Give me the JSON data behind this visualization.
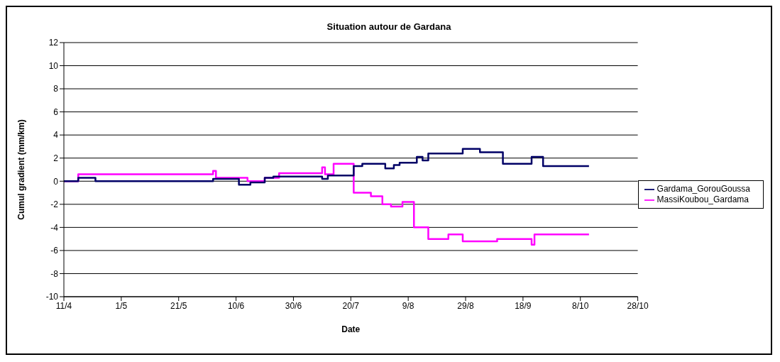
{
  "chart_data": {
    "type": "step",
    "title": "Situation autour de Gardana",
    "xlabel": "Date",
    "ylabel": "Cumul gradient (mm/km)",
    "xlim": [
      "--04-11",
      "--10-28"
    ],
    "xticks": [
      {
        "value": "--04-11",
        "label": "11/4"
      },
      {
        "value": "--05-01",
        "label": "1/5"
      },
      {
        "value": "--05-21",
        "label": "21/5"
      },
      {
        "value": "--06-10",
        "label": "10/6"
      },
      {
        "value": "--06-30",
        "label": "30/6"
      },
      {
        "value": "--07-20",
        "label": "20/7"
      },
      {
        "value": "--08-09",
        "label": "9/8"
      },
      {
        "value": "--08-29",
        "label": "29/8"
      },
      {
        "value": "--09-18",
        "label": "18/9"
      },
      {
        "value": "--10-08",
        "label": "8/10"
      },
      {
        "value": "--10-28",
        "label": "28/10"
      }
    ],
    "ylim": [
      -10,
      12
    ],
    "yticks": [
      -10,
      -8,
      -6,
      -4,
      -2,
      0,
      2,
      4,
      6,
      8,
      10,
      12
    ],
    "grid": "y",
    "legend": "right",
    "marker": "none",
    "line_style": "solid",
    "series": [
      {
        "name": "Gardama_GorouGoussa",
        "color": "#000066",
        "x": [
          "--04-11",
          "--04-16",
          "--04-22",
          "--06-02",
          "--06-11",
          "--06-15",
          "--06-20",
          "--06-23",
          "--07-10",
          "--07-12",
          "--07-21",
          "--07-24",
          "--08-01",
          "--08-04",
          "--08-06",
          "--08-12",
          "--08-14",
          "--08-16",
          "--08-28",
          "--09-03",
          "--09-11",
          "--09-21",
          "--09-25",
          "--10-11"
        ],
        "values": [
          0,
          0.3,
          0,
          0.2,
          -0.3,
          -0.1,
          0.3,
          0.4,
          0.2,
          0.5,
          1.3,
          1.5,
          1.1,
          1.4,
          1.6,
          2.1,
          1.8,
          2.4,
          2.8,
          2.5,
          1.5,
          2.1,
          1.3,
          1.3
        ]
      },
      {
        "name": "MassiKoubou_Gardama",
        "color": "#ff00ff",
        "x": [
          "--04-11",
          "--04-16",
          "--06-02",
          "--06-03",
          "--06-14",
          "--06-20",
          "--06-25",
          "--07-10",
          "--07-11",
          "--07-14",
          "--07-21",
          "--07-27",
          "--07-31",
          "--08-03",
          "--08-07",
          "--08-11",
          "--08-16",
          "--08-23",
          "--08-28",
          "--09-09",
          "--09-21",
          "--09-22",
          "--10-11"
        ],
        "values": [
          0,
          0.6,
          0.9,
          0.3,
          0,
          0.3,
          0.7,
          1.2,
          0.6,
          1.5,
          -1.0,
          -1.3,
          -2.0,
          -2.2,
          -1.8,
          -4.0,
          -5.0,
          -4.6,
          -5.2,
          -5.0,
          -5.5,
          -4.6,
          -4.6
        ]
      }
    ]
  }
}
